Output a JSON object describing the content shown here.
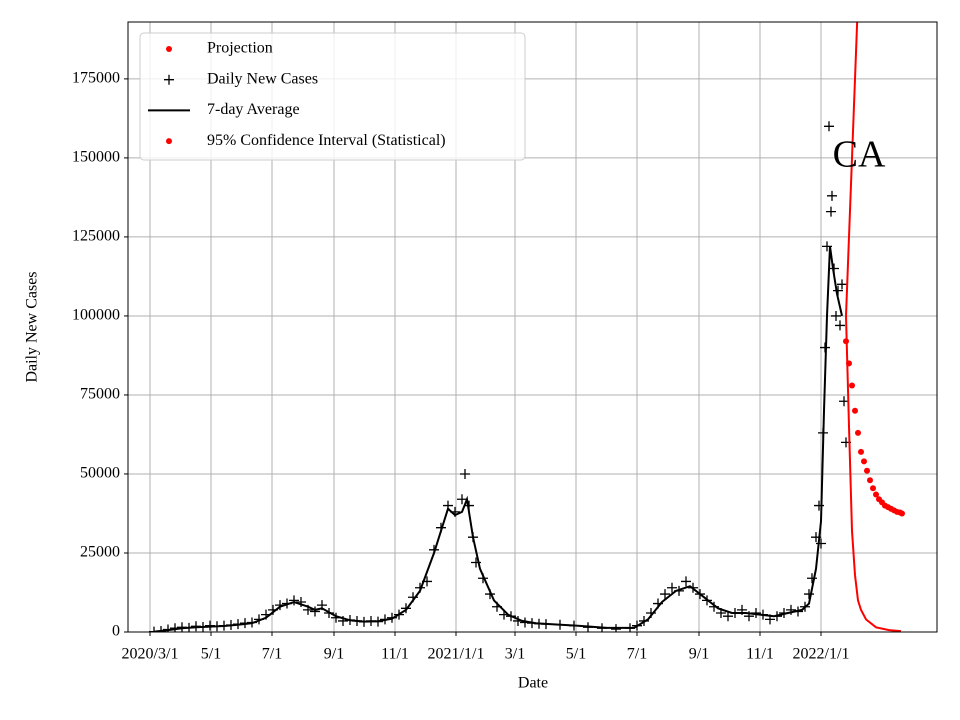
{
  "chart_data": {
    "type": "line",
    "annotation": "CA",
    "xlabel": "Date",
    "ylabel": "Daily New Cases",
    "xlim": [
      "2020-02-08",
      "2022-04-27"
    ],
    "ylim": [
      0,
      193000
    ],
    "xticks": [
      {
        "value": "2020-03-01",
        "label": "2020/3/1"
      },
      {
        "value": "2020-05-01",
        "label": "5/1"
      },
      {
        "value": "2020-07-01",
        "label": "7/1"
      },
      {
        "value": "2020-09-01",
        "label": "9/1"
      },
      {
        "value": "2020-11-01",
        "label": "11/1"
      },
      {
        "value": "2021-01-01",
        "label": "2021/1/1"
      },
      {
        "value": "2021-03-01",
        "label": "3/1"
      },
      {
        "value": "2021-05-01",
        "label": "5/1"
      },
      {
        "value": "2021-07-01",
        "label": "7/1"
      },
      {
        "value": "2021-09-01",
        "label": "9/1"
      },
      {
        "value": "2021-11-01",
        "label": "11/1"
      },
      {
        "value": "2022-01-01",
        "label": "2022/1/1"
      }
    ],
    "yticks": [
      0,
      25000,
      50000,
      75000,
      100000,
      125000,
      150000,
      175000
    ],
    "grid": true,
    "legend": "upper left",
    "series": [
      {
        "name": "Projection",
        "color": "#ff0000",
        "marker": "dot",
        "x": [
          "2022-01-26",
          "2022-01-29",
          "2022-02-01",
          "2022-02-04",
          "2022-02-07",
          "2022-02-10",
          "2022-02-13",
          "2022-02-16",
          "2022-02-19",
          "2022-02-22",
          "2022-02-25",
          "2022-02-28",
          "2022-03-03",
          "2022-03-06",
          "2022-03-09",
          "2022-03-12",
          "2022-03-15",
          "2022-03-18",
          "2022-03-21",
          "2022-03-23"
        ],
        "values": [
          92000,
          85000,
          78000,
          70000,
          63000,
          57000,
          54000,
          51000,
          48000,
          45500,
          43500,
          42000,
          41000,
          40000,
          39500,
          39000,
          38500,
          38000,
          37800,
          37500
        ]
      },
      {
        "name": "Daily New Cases",
        "color": "#000000",
        "marker": "plus",
        "x": [
          "2020-03-05",
          "2020-03-12",
          "2020-03-19",
          "2020-03-26",
          "2020-04-02",
          "2020-04-09",
          "2020-04-16",
          "2020-04-23",
          "2020-04-30",
          "2020-05-07",
          "2020-05-14",
          "2020-05-21",
          "2020-05-28",
          "2020-06-04",
          "2020-06-11",
          "2020-06-18",
          "2020-06-25",
          "2020-07-02",
          "2020-07-09",
          "2020-07-16",
          "2020-07-23",
          "2020-07-30",
          "2020-08-06",
          "2020-08-13",
          "2020-08-20",
          "2020-08-27",
          "2020-09-03",
          "2020-09-10",
          "2020-09-17",
          "2020-09-24",
          "2020-10-01",
          "2020-10-08",
          "2020-10-15",
          "2020-10-22",
          "2020-10-29",
          "2020-11-05",
          "2020-11-12",
          "2020-11-19",
          "2020-11-26",
          "2020-12-03",
          "2020-12-10",
          "2020-12-17",
          "2020-12-24",
          "2020-12-31",
          "2021-01-07",
          "2021-01-10",
          "2021-01-14",
          "2021-01-18",
          "2021-01-21",
          "2021-01-28",
          "2021-02-04",
          "2021-02-11",
          "2021-02-18",
          "2021-02-25",
          "2021-03-04",
          "2021-03-11",
          "2021-03-18",
          "2021-03-25",
          "2021-04-01",
          "2021-04-15",
          "2021-04-29",
          "2021-05-13",
          "2021-05-27",
          "2021-06-10",
          "2021-06-24",
          "2021-07-01",
          "2021-07-08",
          "2021-07-15",
          "2021-07-22",
          "2021-07-29",
          "2021-08-05",
          "2021-08-12",
          "2021-08-19",
          "2021-08-26",
          "2021-09-02",
          "2021-09-09",
          "2021-09-16",
          "2021-09-23",
          "2021-09-30",
          "2021-10-07",
          "2021-10-14",
          "2021-10-21",
          "2021-10-28",
          "2021-11-04",
          "2021-11-11",
          "2021-11-18",
          "2021-11-25",
          "2021-12-02",
          "2021-12-09",
          "2021-12-16",
          "2021-12-20",
          "2021-12-23",
          "2021-12-27",
          "2021-12-30",
          "2022-01-01",
          "2022-01-03",
          "2022-01-05",
          "2022-01-07",
          "2022-01-09",
          "2022-01-11",
          "2022-01-12",
          "2022-01-14",
          "2022-01-16",
          "2022-01-18",
          "2022-01-20",
          "2022-01-22",
          "2022-01-24",
          "2022-01-26"
        ],
        "values": [
          100,
          300,
          800,
          1200,
          1500,
          1300,
          1800,
          1600,
          2000,
          1800,
          2000,
          2200,
          2500,
          2800,
          3000,
          4000,
          5500,
          7000,
          8500,
          9000,
          10000,
          9500,
          7000,
          6500,
          8500,
          6000,
          4500,
          3500,
          3800,
          3500,
          3200,
          3500,
          3300,
          4000,
          4500,
          5500,
          7500,
          11000,
          14000,
          16000,
          26000,
          33000,
          40000,
          38000,
          42000,
          50000,
          40000,
          30000,
          22000,
          17000,
          12000,
          8000,
          5500,
          5000,
          3500,
          3000,
          2800,
          2600,
          2500,
          2300,
          2000,
          1500,
          1200,
          900,
          1200,
          2000,
          3500,
          6000,
          9000,
          12000,
          14000,
          13000,
          16000,
          14000,
          12000,
          10000,
          8000,
          6000,
          5000,
          6000,
          7000,
          5000,
          6000,
          5500,
          4000,
          5000,
          6000,
          7000,
          6500,
          8000,
          12000,
          17000,
          30000,
          40000,
          28000,
          63000,
          90000,
          122000,
          160000,
          133000,
          138000,
          115000,
          100000,
          108000,
          97000,
          110000,
          73000,
          60000
        ]
      },
      {
        "name": "7-day Average",
        "color": "#000000",
        "marker": "line",
        "x": [
          "2020-03-05",
          "2020-03-19",
          "2020-04-02",
          "2020-04-16",
          "2020-04-30",
          "2020-05-14",
          "2020-05-28",
          "2020-06-11",
          "2020-06-25",
          "2020-07-09",
          "2020-07-23",
          "2020-08-06",
          "2020-08-13",
          "2020-08-20",
          "2020-09-03",
          "2020-09-17",
          "2020-10-01",
          "2020-10-15",
          "2020-10-29",
          "2020-11-12",
          "2020-11-26",
          "2020-12-10",
          "2020-12-24",
          "2020-12-31",
          "2021-01-07",
          "2021-01-12",
          "2021-01-18",
          "2021-01-25",
          "2021-02-08",
          "2021-02-22",
          "2021-03-08",
          "2021-03-22",
          "2021-04-05",
          "2021-05-03",
          "2021-06-01",
          "2021-06-28",
          "2021-07-12",
          "2021-07-26",
          "2021-08-09",
          "2021-08-23",
          "2021-09-06",
          "2021-09-20",
          "2021-10-04",
          "2021-10-18",
          "2021-11-01",
          "2021-11-15",
          "2021-11-29",
          "2021-12-13",
          "2021-12-20",
          "2021-12-27",
          "2022-01-01",
          "2022-01-04",
          "2022-01-07",
          "2022-01-10",
          "2022-01-13",
          "2022-01-17",
          "2022-01-22"
        ],
        "values": [
          100,
          600,
          1200,
          1500,
          1700,
          1900,
          2300,
          2800,
          4500,
          8000,
          9500,
          8000,
          7000,
          7500,
          5000,
          3700,
          3300,
          3400,
          4200,
          7000,
          13000,
          25000,
          39000,
          37000,
          38000,
          42000,
          30000,
          20000,
          10000,
          5500,
          3500,
          2800,
          2500,
          2000,
          1300,
          1300,
          4000,
          9500,
          13000,
          14500,
          11000,
          7500,
          6000,
          6000,
          5500,
          5000,
          6000,
          7000,
          9000,
          20000,
          35000,
          70000,
          100000,
          122000,
          115000,
          107000,
          100000
        ]
      },
      {
        "name": "95% Confidence Interval (Statistical)",
        "color": "#ff0000",
        "marker": "dot",
        "style": "line",
        "x": [
          "2022-01-26",
          "2022-01-29",
          "2022-02-01",
          "2022-02-04",
          "2022-02-07",
          "2022-02-10",
          "2022-02-15",
          "2022-02-25",
          "2022-03-10",
          "2022-03-22"
        ],
        "values": [
          100000,
          65000,
          32000,
          18000,
          10000,
          7000,
          4000,
          1500,
          600,
          300
        ],
        "upper": [
          100000,
          125000,
          150000,
          175000,
          200000,
          null,
          null,
          null,
          null,
          null
        ]
      }
    ]
  }
}
